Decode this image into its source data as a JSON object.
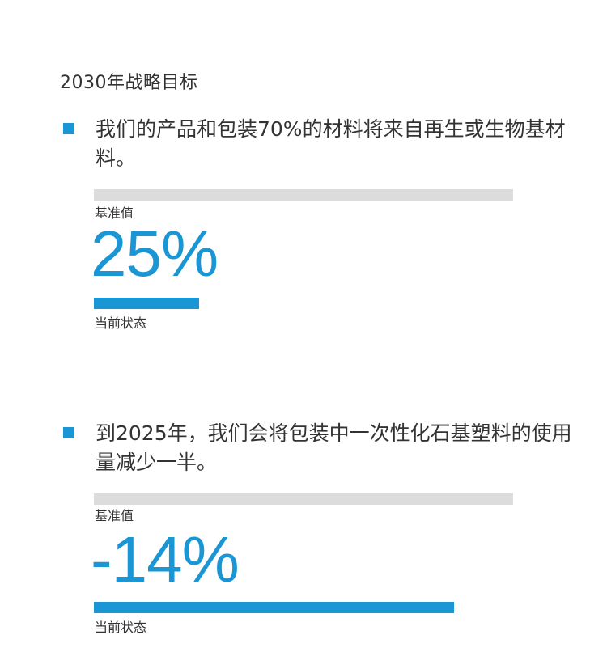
{
  "page": {
    "title": "2030年战略目标"
  },
  "colors": {
    "accent": "#1a96d4",
    "baseline_bar": "#dcdcdc",
    "text": "#333333"
  },
  "goals": [
    {
      "text": "我们的产品和包装70%的材料将来自再生或生物基材料。",
      "baseline_label": "基准值",
      "value": "25%",
      "current_label": "当前状态",
      "progress": 0.25
    },
    {
      "text": "到2025年，我们会将包装中一次性化石基塑料的使用量减少一半。",
      "baseline_label": "基准值",
      "value": "-14%",
      "current_label": "当前状态",
      "progress": 0.86
    }
  ]
}
